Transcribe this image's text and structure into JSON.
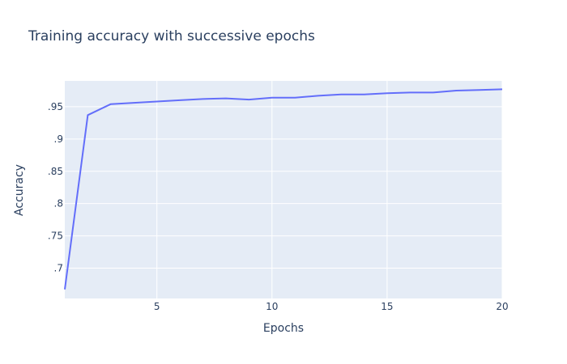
{
  "chart_data": {
    "type": "line",
    "title": "Training accuracy with successive epochs",
    "xlabel": "Epochs",
    "ylabel": "Accuracy",
    "xlim": [
      1,
      20
    ],
    "ylim": [
      0.653,
      0.99
    ],
    "x_ticks": [
      5,
      10,
      15,
      20
    ],
    "y_ticks": [
      0.7,
      0.75,
      0.8,
      0.85,
      0.9,
      0.95
    ],
    "grid": true,
    "series": [
      {
        "x": [
          1,
          2,
          3,
          4,
          5,
          6,
          7,
          8,
          9,
          10,
          11,
          12,
          13,
          14,
          15,
          16,
          17,
          18,
          19,
          20
        ],
        "values": [
          0.667,
          0.937,
          0.954,
          0.956,
          0.958,
          0.96,
          0.962,
          0.963,
          0.961,
          0.964,
          0.964,
          0.967,
          0.969,
          0.969,
          0.971,
          0.972,
          0.972,
          0.975,
          0.976,
          0.977
        ]
      }
    ],
    "colors": {
      "plot_bg": "#e5ecf6",
      "line": "#636efa",
      "grid": "#ffffff",
      "text": "#2a3f5f"
    }
  }
}
